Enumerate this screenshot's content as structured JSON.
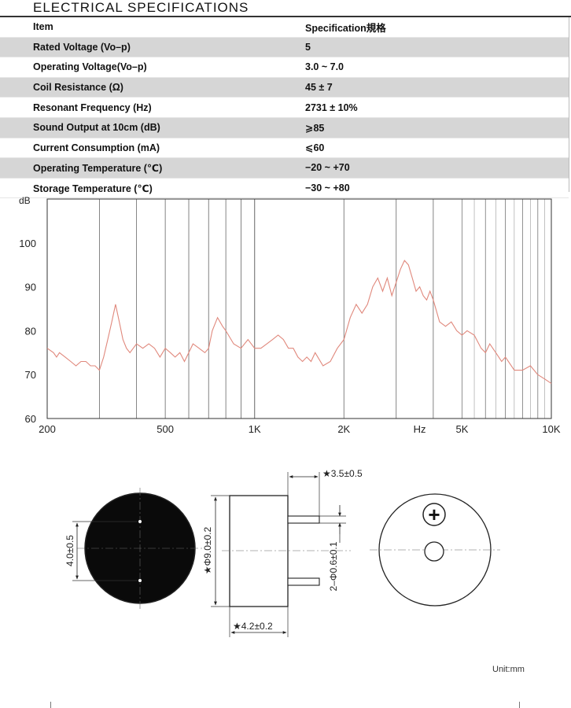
{
  "heading": "ELECTRICAL SPECIFICATIONS",
  "table": {
    "header": [
      "Item",
      "Specification規格"
    ],
    "rows": [
      {
        "item": "Rated Voltage (Vo–p)",
        "value": "5"
      },
      {
        "item": "Operating Voltage(Vo–p)",
        "value": "3.0 ~ 7.0"
      },
      {
        "item": "Coil Resistance (Ω)",
        "value": "45 ± 7"
      },
      {
        "item": "Resonant Frequency (Hz)",
        "value": "2731 ± 10%"
      },
      {
        "item": "Sound Output at 10cm (dB)",
        "value": "⩾85"
      },
      {
        "item": "Current Consumption (mA)",
        "value": "⩽60"
      },
      {
        "item": "Operating Temperature (℃)",
        "value": "−20 ~ +70"
      },
      {
        "item": "Storage Temperature (℃)",
        "value": "−30 ~ +80"
      }
    ]
  },
  "chart_data": {
    "type": "line",
    "ylabel": "dB",
    "xscale": "log",
    "xlim": [
      200,
      10000
    ],
    "ylim": [
      60,
      110
    ],
    "yticks": [
      "60",
      "70",
      "80",
      "90",
      "100"
    ],
    "xticks": [
      {
        "value": 200,
        "label": "200"
      },
      {
        "value": 500,
        "label": "500"
      },
      {
        "value": 1000,
        "label": "1K"
      },
      {
        "value": 2000,
        "label": "2K"
      },
      {
        "value": 5000,
        "label": "5K"
      },
      {
        "value": 10000,
        "label": "10K"
      }
    ],
    "xunit_label": "Hz",
    "xunit_at": 3600,
    "grid": true,
    "line_color": "#e0887c",
    "series": [
      {
        "x": [
          200,
          210,
          215,
          220,
          230,
          240,
          250,
          260,
          270,
          280,
          290,
          300,
          310,
          320,
          330,
          340,
          350,
          360,
          370,
          380,
          390,
          400,
          420,
          440,
          460,
          480,
          500,
          520,
          540,
          560,
          580,
          600,
          620,
          650,
          680,
          700,
          720,
          750,
          780,
          800,
          850,
          900,
          950,
          1000,
          1050,
          1100,
          1150,
          1200,
          1250,
          1300,
          1350,
          1400,
          1450,
          1500,
          1550,
          1600,
          1700,
          1800,
          1900,
          2000,
          2100,
          2200,
          2300,
          2400,
          2500,
          2600,
          2700,
          2800,
          2900,
          3000,
          3100,
          3200,
          3300,
          3400,
          3500,
          3600,
          3700,
          3800,
          3900,
          4000,
          4200,
          4400,
          4600,
          4800,
          5000,
          5200,
          5500,
          5800,
          6000,
          6200,
          6500,
          6800,
          7000,
          7500,
          8000,
          8500,
          9000,
          9500,
          10000
        ],
        "y": [
          76,
          75,
          74,
          75,
          74,
          73,
          72,
          73,
          73,
          72,
          72,
          71,
          74,
          78,
          82,
          86,
          82,
          78,
          76,
          75,
          76,
          77,
          76,
          77,
          76,
          74,
          76,
          75,
          74,
          75,
          73,
          75,
          77,
          76,
          75,
          76,
          80,
          83,
          81,
          80,
          77,
          76,
          78,
          76,
          76,
          77,
          78,
          79,
          78,
          76,
          76,
          74,
          73,
          74,
          73,
          75,
          72,
          73,
          76,
          78,
          83,
          86,
          84,
          86,
          90,
          92,
          89,
          92,
          88,
          91,
          94,
          96,
          95,
          92,
          89,
          90,
          88,
          87,
          89,
          87,
          82,
          81,
          82,
          80,
          79,
          80,
          79,
          76,
          75,
          77,
          75,
          73,
          74,
          71,
          71,
          72,
          70,
          69,
          68
        ]
      }
    ]
  },
  "drawing": {
    "dim_pin_spacing": "4.0±0.5",
    "dim_body_diameter": "★Φ9.0±0.2",
    "dim_body_height": "★4.2±0.2",
    "dim_pin_length": "★3.5±0.5",
    "dim_pin_diameter": "2–Φ0.6±0.1",
    "polarity_symbol": "+"
  },
  "unit_label": "Unit:mm"
}
